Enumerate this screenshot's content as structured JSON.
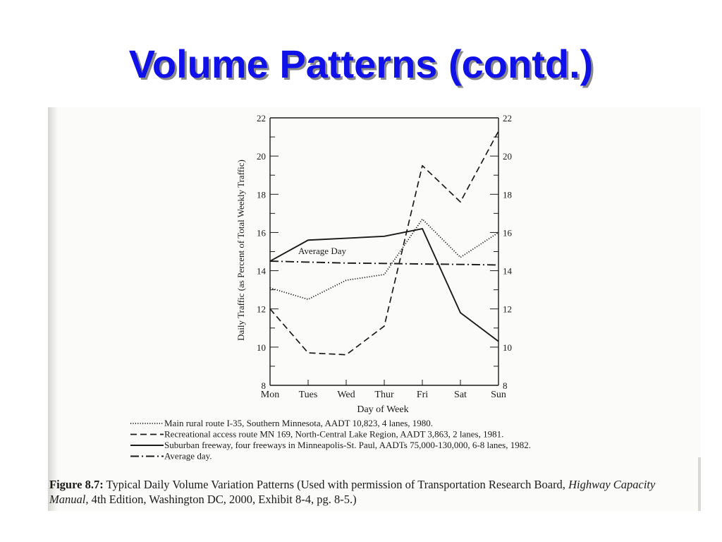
{
  "slide": {
    "title": "Volume Patterns (contd.)"
  },
  "caption": {
    "label": "Figure 8.7:",
    "text_before_italic": " Typical Daily Volume Variation Patterns (Used with permission of Transportation Research Board, ",
    "italic": "Highway Capacity Manual",
    "text_after_italic": ", 4th Edition, Washington DC, 2000, Exhibit 8-4, pg. 8-5.)"
  },
  "chart_data": {
    "type": "line",
    "title": "",
    "xlabel": "Day of Week",
    "ylabel": "Daily Traffic (as Percent of Total Weekly Traffic)",
    "categories": [
      "Mon",
      "Tues",
      "Wed",
      "Thur",
      "Fri",
      "Sat",
      "Sun"
    ],
    "ylim": [
      8,
      22
    ],
    "yticks": [
      8,
      10,
      12,
      14,
      16,
      18,
      20,
      22
    ],
    "grid": false,
    "legend_placement": "below",
    "annotation": "Average Day",
    "series": [
      {
        "name": "Main rural route I-35, Southern Minnesota, AADT 10,823, 4 lanes, 1980.",
        "style": "dotted",
        "values": [
          13.1,
          12.5,
          13.5,
          13.8,
          16.7,
          14.7,
          16.0
        ]
      },
      {
        "name": "Recreational access route MN 169, North-Central Lake Region, AADT 3,863, 2 lanes, 1981.",
        "style": "dashed",
        "values": [
          12.0,
          9.7,
          9.6,
          11.1,
          19.5,
          17.6,
          21.3
        ]
      },
      {
        "name": "Suburban freeway, four freeways in Minneapolis-St. Paul, AADTs 75,000-130,000, 6-8 lanes, 1982.",
        "style": "solid",
        "values": [
          14.5,
          15.6,
          15.7,
          15.8,
          16.2,
          11.8,
          10.3
        ]
      },
      {
        "name": "Average day.",
        "style": "dash-dot",
        "values": [
          14.5,
          14.45,
          14.4,
          14.38,
          14.35,
          14.33,
          14.3
        ]
      }
    ],
    "colors": {
      "ink": "#1a1a1a",
      "title": "#1010e8"
    }
  }
}
